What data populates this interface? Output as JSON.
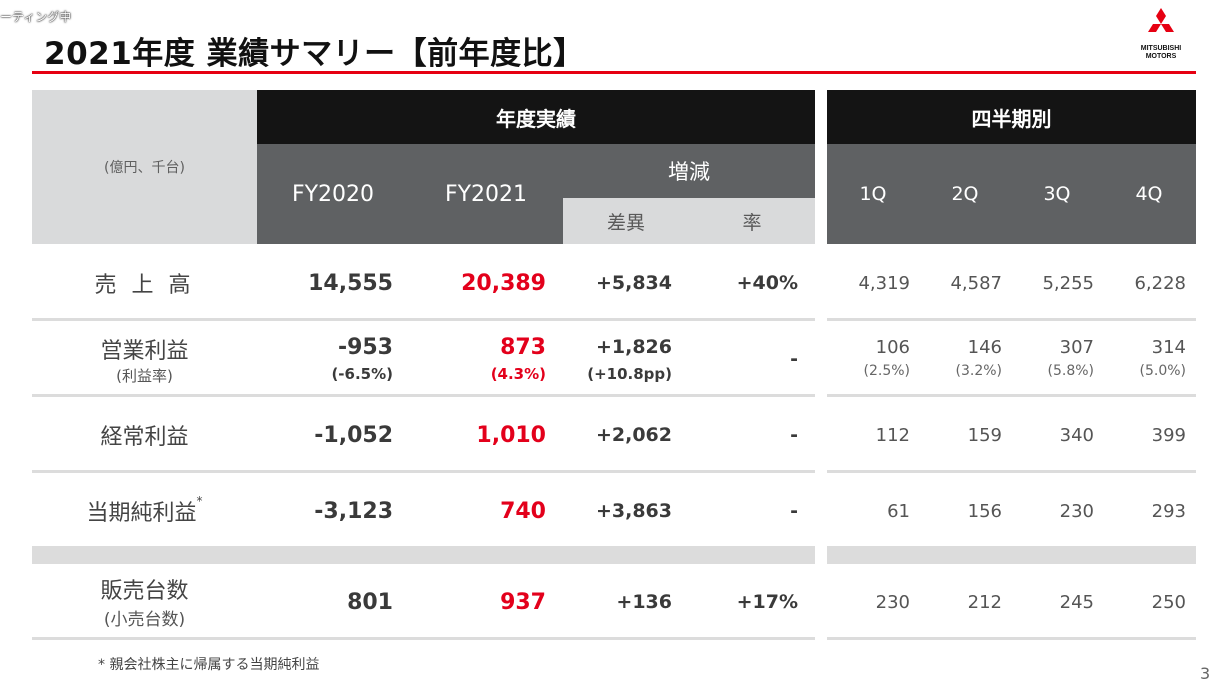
{
  "overlay_text": "ーティング中",
  "title": "2021年度 業績サマリー【前年度比】",
  "logo": {
    "line1": "MITSUBISHI",
    "line2": "MOTORS",
    "mark_color": "#e60012"
  },
  "colors": {
    "accent_red": "#e60012",
    "header_black": "#141414",
    "header_dark": "#5f6163",
    "header_light": "#d9dadb"
  },
  "table": {
    "units": "(億円、千台)",
    "group_annual": "年度実績",
    "group_quarterly": "四半期別",
    "col_fy2020": "FY2020",
    "col_fy2021": "FY2021",
    "col_change": "増減",
    "col_diff": "差異",
    "col_rate": "率",
    "quarters": [
      "1Q",
      "2Q",
      "3Q",
      "4Q"
    ],
    "rows": [
      {
        "label": "売 上 高",
        "fy2020": "14,555",
        "fy2021": "20,389",
        "diff": "+5,834",
        "rate": "+40%",
        "q": [
          "4,319",
          "4,587",
          "5,255",
          "6,228"
        ]
      },
      {
        "label": "営業利益",
        "sublabel": "(利益率)",
        "fy2020": "-953",
        "fy2020_sub": "(-6.5%)",
        "fy2021": "873",
        "fy2021_sub": "(4.3%)",
        "diff": "+1,826",
        "diff_sub": "(+10.8pp)",
        "rate": "-",
        "q": [
          "106",
          "146",
          "307",
          "314"
        ],
        "q_sub": [
          "(2.5%)",
          "(3.2%)",
          "(5.8%)",
          "(5.0%)"
        ]
      },
      {
        "label": "経常利益",
        "fy2020": "-1,052",
        "fy2021": "1,010",
        "diff": "+2,062",
        "rate": "-",
        "q": [
          "112",
          "159",
          "340",
          "399"
        ]
      },
      {
        "label": "当期純利益",
        "label_note": "*",
        "fy2020": "-3,123",
        "fy2021": "740",
        "diff": "+3,863",
        "rate": "-",
        "q": [
          "61",
          "156",
          "230",
          "293"
        ]
      },
      {
        "label": "販売台数",
        "sublabel": "(小売台数)",
        "fy2020": "801",
        "fy2021": "937",
        "diff": "+136",
        "rate": "+17%",
        "q": [
          "230",
          "212",
          "245",
          "250"
        ]
      }
    ]
  },
  "footnote": "* 親会社株主に帰属する当期純利益",
  "page_number": "3"
}
